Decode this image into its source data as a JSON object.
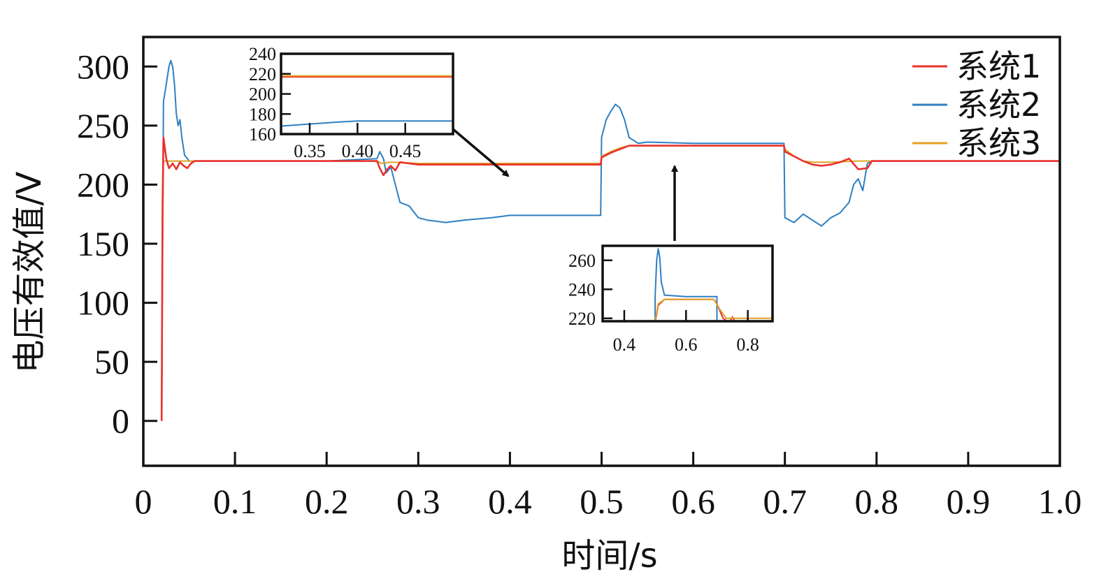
{
  "chart_data": {
    "type": "line",
    "title": "",
    "xlabel": "时间/s",
    "ylabel": "电压有效值/V",
    "xlim": [
      0,
      1.0
    ],
    "ylim": [
      -38,
      325
    ],
    "xticks": [
      "0",
      "0.1",
      "0.2",
      "0.3",
      "0.4",
      "0.5",
      "0.6",
      "0.7",
      "0.8",
      "0.9",
      "1.0"
    ],
    "xtick_values": [
      0,
      0.1,
      0.2,
      0.3,
      0.4,
      0.5,
      0.6,
      0.7,
      0.8,
      0.9,
      1.0
    ],
    "yticks": [
      "0",
      "50",
      "100",
      "150",
      "200",
      "250",
      "300"
    ],
    "ytick_values": [
      0,
      50,
      100,
      150,
      200,
      250,
      300
    ],
    "grid": false,
    "legend_position": "top-right",
    "series": [
      {
        "name": "系统1",
        "color": "#e8322d",
        "points": [
          [
            0.02,
            0
          ],
          [
            0.021,
            180
          ],
          [
            0.022,
            240
          ],
          [
            0.025,
            222
          ],
          [
            0.028,
            214
          ],
          [
            0.032,
            218
          ],
          [
            0.036,
            213
          ],
          [
            0.04,
            219
          ],
          [
            0.044,
            216
          ],
          [
            0.048,
            214
          ],
          [
            0.052,
            218
          ],
          [
            0.056,
            220
          ],
          [
            0.1,
            220
          ],
          [
            0.2,
            220
          ],
          [
            0.255,
            220
          ],
          [
            0.258,
            214
          ],
          [
            0.262,
            208
          ],
          [
            0.266,
            213
          ],
          [
            0.27,
            216
          ],
          [
            0.275,
            212
          ],
          [
            0.28,
            219
          ],
          [
            0.3,
            217
          ],
          [
            0.35,
            217
          ],
          [
            0.4,
            217
          ],
          [
            0.45,
            217
          ],
          [
            0.499,
            217
          ],
          [
            0.5,
            223
          ],
          [
            0.51,
            227
          ],
          [
            0.52,
            230
          ],
          [
            0.53,
            233
          ],
          [
            0.6,
            233
          ],
          [
            0.65,
            233
          ],
          [
            0.699,
            233
          ],
          [
            0.7,
            228
          ],
          [
            0.71,
            224
          ],
          [
            0.72,
            220
          ],
          [
            0.73,
            217
          ],
          [
            0.74,
            216
          ],
          [
            0.75,
            217
          ],
          [
            0.76,
            219
          ],
          [
            0.77,
            222
          ],
          [
            0.78,
            213
          ],
          [
            0.79,
            214
          ],
          [
            0.795,
            220
          ],
          [
            0.8,
            220
          ],
          [
            0.9,
            220
          ],
          [
            1.0,
            220
          ]
        ]
      },
      {
        "name": "系统2",
        "color": "#2f7fc1",
        "points": [
          [
            0.02,
            0
          ],
          [
            0.022,
            270
          ],
          [
            0.025,
            285
          ],
          [
            0.028,
            300
          ],
          [
            0.03,
            305
          ],
          [
            0.032,
            300
          ],
          [
            0.034,
            285
          ],
          [
            0.036,
            260
          ],
          [
            0.038,
            250
          ],
          [
            0.04,
            255
          ],
          [
            0.042,
            240
          ],
          [
            0.045,
            225
          ],
          [
            0.05,
            220
          ],
          [
            0.1,
            220
          ],
          [
            0.2,
            220
          ],
          [
            0.255,
            222
          ],
          [
            0.258,
            228
          ],
          [
            0.262,
            222
          ],
          [
            0.265,
            210
          ],
          [
            0.27,
            215
          ],
          [
            0.275,
            200
          ],
          [
            0.28,
            185
          ],
          [
            0.29,
            182
          ],
          [
            0.3,
            172
          ],
          [
            0.31,
            170
          ],
          [
            0.33,
            168
          ],
          [
            0.35,
            170
          ],
          [
            0.38,
            172
          ],
          [
            0.4,
            174
          ],
          [
            0.45,
            174
          ],
          [
            0.499,
            174
          ],
          [
            0.5,
            240
          ],
          [
            0.505,
            255
          ],
          [
            0.51,
            262
          ],
          [
            0.515,
            268
          ],
          [
            0.52,
            265
          ],
          [
            0.525,
            255
          ],
          [
            0.53,
            240
          ],
          [
            0.54,
            235
          ],
          [
            0.55,
            236
          ],
          [
            0.6,
            235
          ],
          [
            0.65,
            235
          ],
          [
            0.699,
            235
          ],
          [
            0.7,
            172
          ],
          [
            0.71,
            168
          ],
          [
            0.72,
            175
          ],
          [
            0.73,
            170
          ],
          [
            0.74,
            165
          ],
          [
            0.75,
            172
          ],
          [
            0.76,
            176
          ],
          [
            0.77,
            185
          ],
          [
            0.775,
            200
          ],
          [
            0.78,
            205
          ],
          [
            0.785,
            195
          ],
          [
            0.79,
            218
          ],
          [
            0.795,
            220
          ],
          [
            0.8,
            220
          ],
          [
            0.9,
            220
          ],
          [
            1.0,
            220
          ]
        ]
      },
      {
        "name": "系统3",
        "color": "#e2a224",
        "points": [
          [
            0.02,
            0
          ],
          [
            0.021,
            150
          ],
          [
            0.022,
            220
          ],
          [
            0.1,
            220
          ],
          [
            0.2,
            220
          ],
          [
            0.255,
            220
          ],
          [
            0.26,
            218
          ],
          [
            0.27,
            219
          ],
          [
            0.3,
            218
          ],
          [
            0.4,
            218
          ],
          [
            0.499,
            218
          ],
          [
            0.5,
            224
          ],
          [
            0.51,
            228
          ],
          [
            0.52,
            231
          ],
          [
            0.53,
            233
          ],
          [
            0.6,
            233
          ],
          [
            0.699,
            233
          ],
          [
            0.7,
            230
          ],
          [
            0.71,
            224
          ],
          [
            0.72,
            220
          ],
          [
            0.73,
            219
          ],
          [
            0.75,
            219
          ],
          [
            0.78,
            220
          ],
          [
            0.8,
            220
          ],
          [
            0.9,
            220
          ],
          [
            1.0,
            220
          ]
        ]
      }
    ],
    "insets": [
      {
        "xlim": [
          0.32,
          0.5
        ],
        "ylim": [
          160,
          240
        ],
        "xticks": [
          "0.35",
          "0.40",
          "0.45"
        ],
        "xtick_values": [
          0.35,
          0.4,
          0.45
        ],
        "yticks": [
          "160",
          "180",
          "200",
          "220",
          "240"
        ],
        "ytick_values": [
          160,
          180,
          200,
          220,
          240
        ],
        "series": [
          {
            "color": "#2f7fc1",
            "points": [
              [
                0.32,
                168
              ],
              [
                0.35,
                170
              ],
              [
                0.38,
                172
              ],
              [
                0.4,
                173
              ],
              [
                0.45,
                173
              ],
              [
                0.5,
                173
              ]
            ]
          },
          {
            "color": "#e8322d",
            "points": [
              [
                0.32,
                217
              ],
              [
                0.4,
                217
              ],
              [
                0.5,
                217
              ]
            ]
          },
          {
            "color": "#e2a224",
            "points": [
              [
                0.32,
                218
              ],
              [
                0.4,
                218
              ],
              [
                0.5,
                218
              ]
            ]
          }
        ]
      },
      {
        "xlim": [
          0.33,
          0.88
        ],
        "ylim": [
          218,
          270
        ],
        "xticks": [
          "0.4",
          "0.6",
          "0.8"
        ],
        "xtick_values": [
          0.4,
          0.6,
          0.8
        ],
        "yticks": [
          "220",
          "240",
          "260"
        ],
        "ytick_values": [
          220,
          240,
          260
        ],
        "series": [
          {
            "color": "#2f7fc1",
            "points": [
              [
                0.33,
                218
              ],
              [
                0.5,
                218
              ],
              [
                0.5,
                235
              ],
              [
                0.505,
                260
              ],
              [
                0.51,
                268
              ],
              [
                0.515,
                262
              ],
              [
                0.52,
                245
              ],
              [
                0.53,
                236
              ],
              [
                0.6,
                235
              ],
              [
                0.7,
                235
              ],
              [
                0.7,
                218
              ],
              [
                0.72,
                218
              ],
              [
                0.88,
                218
              ]
            ]
          },
          {
            "color": "#e8322d",
            "points": [
              [
                0.33,
                217
              ],
              [
                0.5,
                217
              ],
              [
                0.51,
                229
              ],
              [
                0.53,
                233
              ],
              [
                0.69,
                233
              ],
              [
                0.7,
                230
              ],
              [
                0.72,
                220
              ],
              [
                0.74,
                217
              ],
              [
                0.75,
                221
              ],
              [
                0.76,
                217
              ],
              [
                0.77,
                218
              ],
              [
                0.88,
                218
              ]
            ]
          },
          {
            "color": "#e2a224",
            "points": [
              [
                0.33,
                218
              ],
              [
                0.5,
                218
              ],
              [
                0.51,
                230
              ],
              [
                0.53,
                233
              ],
              [
                0.69,
                233
              ],
              [
                0.71,
                226
              ],
              [
                0.73,
                220
              ],
              [
                0.88,
                220
              ]
            ]
          }
        ]
      }
    ]
  }
}
